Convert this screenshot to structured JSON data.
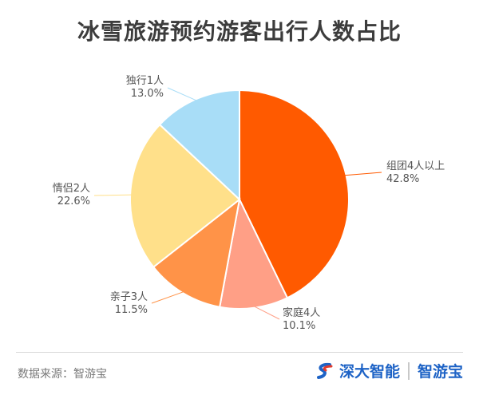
{
  "chart_data": {
    "type": "pie",
    "title": "冰雪旅游预约游客出行人数占比",
    "slices": [
      {
        "name": "组团4人以上",
        "value": 42.8,
        "label": "42.8%",
        "color": "#ff5a00"
      },
      {
        "name": "家庭4人",
        "value": 10.1,
        "label": "10.1%",
        "color": "#ff9f86"
      },
      {
        "name": "亲子3人",
        "value": 11.5,
        "label": "11.5%",
        "color": "#ff9348"
      },
      {
        "name": "情侣2人",
        "value": 22.6,
        "label": "22.6%",
        "color": "#ffe08a"
      },
      {
        "name": "独行1人",
        "value": 13.0,
        "label": "13.0%",
        "color": "#a8ddf7"
      }
    ]
  },
  "footer": {
    "source": "数据来源：智游宝",
    "brand": "深大智能",
    "brand_sub": "智游宝"
  }
}
